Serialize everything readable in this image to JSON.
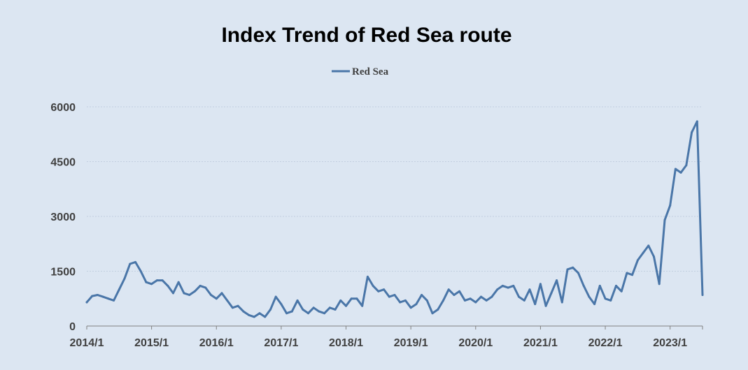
{
  "chart_data": {
    "type": "line",
    "title": "Index Trend of Red Sea route",
    "xlabel": "",
    "ylabel": "",
    "legend_position": "top-center",
    "grid": true,
    "ylim": [
      0,
      6000
    ],
    "y_ticks": [
      "0",
      "1500",
      "3000",
      "4500",
      "6000"
    ],
    "x_ticks": [
      "2014/1",
      "2015/1",
      "2016/1",
      "2017/1",
      "2018/1",
      "2019/1",
      "2020/1",
      "2021/1",
      "2022/1",
      "2023/1"
    ],
    "x_range": [
      "2014-01",
      "2023-07"
    ],
    "series": [
      {
        "name": "Red Sea",
        "color": "#4a76a8",
        "points": [
          [
            "2014-01",
            650
          ],
          [
            "2014-02",
            820
          ],
          [
            "2014-03",
            850
          ],
          [
            "2014-04",
            800
          ],
          [
            "2014-05",
            750
          ],
          [
            "2014-06",
            700
          ],
          [
            "2014-07",
            1000
          ],
          [
            "2014-08",
            1300
          ],
          [
            "2014-09",
            1700
          ],
          [
            "2014-10",
            1750
          ],
          [
            "2014-11",
            1500
          ],
          [
            "2014-12",
            1200
          ],
          [
            "2015-01",
            1150
          ],
          [
            "2015-02",
            1250
          ],
          [
            "2015-03",
            1250
          ],
          [
            "2015-04",
            1100
          ],
          [
            "2015-05",
            900
          ],
          [
            "2015-06",
            1200
          ],
          [
            "2015-07",
            900
          ],
          [
            "2015-08",
            850
          ],
          [
            "2015-09",
            950
          ],
          [
            "2015-10",
            1100
          ],
          [
            "2015-11",
            1050
          ],
          [
            "2015-12",
            850
          ],
          [
            "2016-01",
            750
          ],
          [
            "2016-02",
            900
          ],
          [
            "2016-03",
            700
          ],
          [
            "2016-04",
            500
          ],
          [
            "2016-05",
            550
          ],
          [
            "2016-06",
            400
          ],
          [
            "2016-07",
            300
          ],
          [
            "2016-08",
            250
          ],
          [
            "2016-09",
            350
          ],
          [
            "2016-10",
            250
          ],
          [
            "2016-11",
            450
          ],
          [
            "2016-12",
            800
          ],
          [
            "2017-01",
            600
          ],
          [
            "2017-02",
            350
          ],
          [
            "2017-03",
            400
          ],
          [
            "2017-04",
            700
          ],
          [
            "2017-05",
            450
          ],
          [
            "2017-06",
            350
          ],
          [
            "2017-07",
            500
          ],
          [
            "2017-08",
            400
          ],
          [
            "2017-09",
            350
          ],
          [
            "2017-10",
            500
          ],
          [
            "2017-11",
            450
          ],
          [
            "2017-12",
            700
          ],
          [
            "2018-01",
            550
          ],
          [
            "2018-02",
            750
          ],
          [
            "2018-03",
            750
          ],
          [
            "2018-04",
            550
          ],
          [
            "2018-05",
            1350
          ],
          [
            "2018-06",
            1100
          ],
          [
            "2018-07",
            950
          ],
          [
            "2018-08",
            1000
          ],
          [
            "2018-09",
            800
          ],
          [
            "2018-10",
            850
          ],
          [
            "2018-11",
            650
          ],
          [
            "2018-12",
            700
          ],
          [
            "2019-01",
            500
          ],
          [
            "2019-02",
            600
          ],
          [
            "2019-03",
            850
          ],
          [
            "2019-04",
            700
          ],
          [
            "2019-05",
            350
          ],
          [
            "2019-06",
            450
          ],
          [
            "2019-07",
            700
          ],
          [
            "2019-08",
            1000
          ],
          [
            "2019-09",
            850
          ],
          [
            "2019-10",
            950
          ],
          [
            "2019-11",
            700
          ],
          [
            "2019-12",
            750
          ],
          [
            "2020-01",
            650
          ],
          [
            "2020-02",
            800
          ],
          [
            "2020-03",
            700
          ],
          [
            "2020-04",
            800
          ],
          [
            "2020-05",
            1000
          ],
          [
            "2020-06",
            1100
          ],
          [
            "2020-07",
            1050
          ],
          [
            "2020-08",
            1100
          ],
          [
            "2020-09",
            800
          ],
          [
            "2020-10",
            700
          ],
          [
            "2020-11",
            1000
          ],
          [
            "2020-12",
            600
          ],
          [
            "2021-01",
            1150
          ],
          [
            "2021-02",
            550
          ],
          [
            "2021-03",
            900
          ],
          [
            "2021-04",
            1250
          ],
          [
            "2021-05",
            650
          ],
          [
            "2021-06",
            1550
          ],
          [
            "2021-07",
            1600
          ],
          [
            "2021-08",
            1450
          ],
          [
            "2021-09",
            1100
          ],
          [
            "2021-10",
            800
          ],
          [
            "2021-11",
            600
          ],
          [
            "2021-12",
            1100
          ],
          [
            "2022-01",
            750
          ],
          [
            "2022-02",
            700
          ],
          [
            "2022-03",
            1100
          ],
          [
            "2022-04",
            950
          ],
          [
            "2022-05",
            1450
          ],
          [
            "2022-06",
            1400
          ],
          [
            "2022-07",
            1800
          ],
          [
            "2022-08",
            2000
          ],
          [
            "2022-09",
            2200
          ],
          [
            "2022-10",
            1900
          ],
          [
            "2022-11",
            1150
          ],
          [
            "2022-12",
            2900
          ],
          [
            "2023-01",
            3300
          ],
          [
            "2023-02",
            4300
          ],
          [
            "2023-03",
            4200
          ],
          [
            "2023-04",
            4400
          ],
          [
            "2023-05",
            5300
          ],
          [
            "2023-06",
            5600
          ],
          [
            "2023-07",
            850
          ]
        ]
      }
    ]
  }
}
